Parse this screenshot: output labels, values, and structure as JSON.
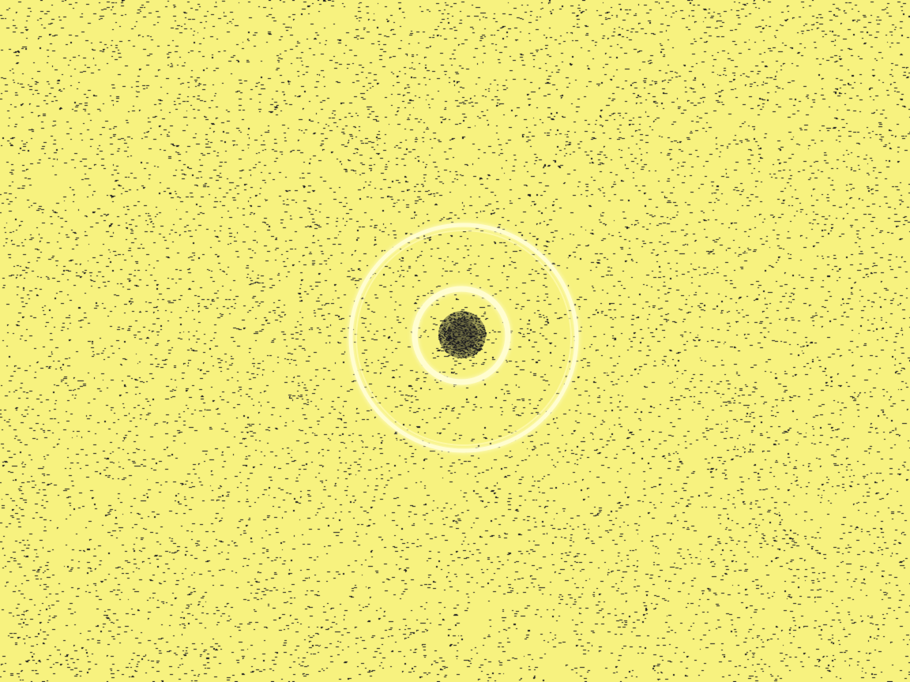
{
  "scene": {
    "description_label": "",
    "background_color": "#f7f27f",
    "speckle_color": "#14141e",
    "ring_color": "#fffdd0",
    "glow_color": "#fffbb5",
    "ring_count": 2,
    "has_dark_core": true
  }
}
